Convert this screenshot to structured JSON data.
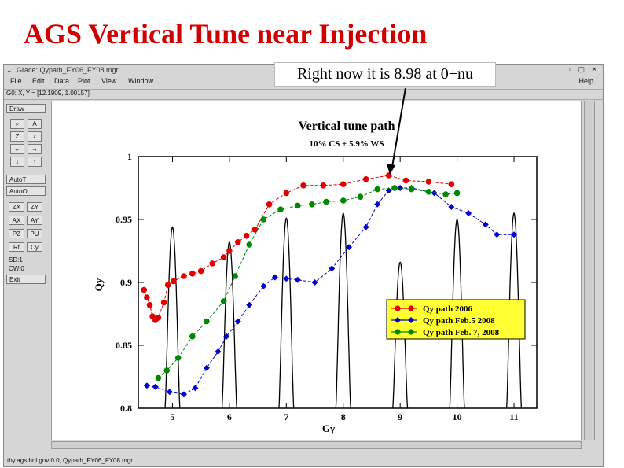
{
  "slide": {
    "title": "AGS Vertical Tune near Injection",
    "callout": "Right now it is 8.98 at 0+nu"
  },
  "window": {
    "title": "Grace: Qypath_FY06_FY08.mgr",
    "menu": [
      "File",
      "Edit",
      "Data",
      "Plot",
      "View",
      "Window"
    ],
    "help": "Help",
    "coords": "G0: X, Y = [12.1909, 1.00157]",
    "status": "tby.ags.bnl.gov:0.0, Qypath_FY06_FY08.mgr",
    "toolbar": {
      "draw": "Draw",
      "autot": "AutoT",
      "autoo": "AutoO",
      "zx": "ZX",
      "zy": "ZY",
      "ax": "AX",
      "ay": "AY",
      "pz": "PZ",
      "pu": "PU",
      "rt": "Rt",
      "cy": "Cy",
      "sd": "SD:1",
      "cw": "CW:0",
      "exit": "Exit"
    }
  },
  "chart_data": {
    "type": "line",
    "title": "Vertical tune path",
    "subtitle": "10% CS + 5.9% WS",
    "xlabel": "Gγ",
    "ylabel": "Qy",
    "xlim": [
      4.4,
      11.4
    ],
    "ylim": [
      0.8,
      1.0
    ],
    "xticks": [
      5,
      6,
      7,
      8,
      9,
      10,
      11
    ],
    "yticks": [
      0.8,
      0.85,
      0.9,
      0.95,
      1
    ],
    "ytick_labels": [
      "0.8",
      "0.85",
      "0.9",
      "0.95",
      "1"
    ],
    "legend_position": "right",
    "series": [
      {
        "name": "Qy path 2006",
        "color": "#e00000",
        "points": [
          [
            4.5,
            0.894
          ],
          [
            4.55,
            0.888
          ],
          [
            4.6,
            0.882
          ],
          [
            4.65,
            0.873
          ],
          [
            4.7,
            0.87
          ],
          [
            4.75,
            0.872
          ],
          [
            4.85,
            0.884
          ],
          [
            4.92,
            0.898
          ],
          [
            5.02,
            0.901
          ],
          [
            5.2,
            0.905
          ],
          [
            5.35,
            0.907
          ],
          [
            5.5,
            0.909
          ],
          [
            5.7,
            0.915
          ],
          [
            5.9,
            0.92
          ],
          [
            6.0,
            0.925
          ],
          [
            6.15,
            0.932
          ],
          [
            6.3,
            0.937
          ],
          [
            6.45,
            0.942
          ],
          [
            6.7,
            0.962
          ],
          [
            7.0,
            0.971
          ],
          [
            7.3,
            0.977
          ],
          [
            7.65,
            0.977
          ],
          [
            8.0,
            0.978
          ],
          [
            8.4,
            0.982
          ],
          [
            8.8,
            0.985
          ],
          [
            9.1,
            0.981
          ],
          [
            9.5,
            0.98
          ],
          [
            9.9,
            0.978
          ]
        ]
      },
      {
        "name": "Qy path Feb.5 2008",
        "color": "#0000d0",
        "points": [
          [
            4.55,
            0.818
          ],
          [
            4.7,
            0.817
          ],
          [
            4.95,
            0.813
          ],
          [
            5.2,
            0.811
          ],
          [
            5.4,
            0.816
          ],
          [
            5.6,
            0.832
          ],
          [
            5.8,
            0.845
          ],
          [
            5.95,
            0.857
          ],
          [
            6.15,
            0.869
          ],
          [
            6.35,
            0.882
          ],
          [
            6.6,
            0.897
          ],
          [
            6.8,
            0.904
          ],
          [
            7.0,
            0.903
          ],
          [
            7.2,
            0.902
          ],
          [
            7.5,
            0.9
          ],
          [
            7.8,
            0.911
          ],
          [
            8.1,
            0.928
          ],
          [
            8.4,
            0.944
          ],
          [
            8.6,
            0.962
          ],
          [
            8.8,
            0.973
          ],
          [
            9.0,
            0.975
          ],
          [
            9.2,
            0.975
          ],
          [
            9.6,
            0.971
          ],
          [
            9.9,
            0.96
          ],
          [
            10.2,
            0.955
          ],
          [
            10.5,
            0.946
          ],
          [
            10.7,
            0.938
          ],
          [
            11.0,
            0.938
          ]
        ]
      },
      {
        "name": "Qy path Feb. 7, 2008",
        "color": "#008800",
        "points": [
          [
            4.75,
            0.824
          ],
          [
            4.9,
            0.83
          ],
          [
            5.1,
            0.84
          ],
          [
            5.35,
            0.857
          ],
          [
            5.6,
            0.869
          ],
          [
            5.9,
            0.885
          ],
          [
            6.1,
            0.905
          ],
          [
            6.35,
            0.93
          ],
          [
            6.6,
            0.95
          ],
          [
            6.9,
            0.958
          ],
          [
            7.2,
            0.961
          ],
          [
            7.45,
            0.962
          ],
          [
            7.7,
            0.964
          ],
          [
            8.0,
            0.965
          ],
          [
            8.3,
            0.968
          ],
          [
            8.6,
            0.974
          ],
          [
            8.9,
            0.975
          ],
          [
            9.2,
            0.974
          ],
          [
            9.5,
            0.972
          ],
          [
            9.8,
            0.97
          ],
          [
            10.0,
            0.971
          ]
        ]
      }
    ],
    "resonance_peaks": [
      5.0,
      6.0,
      7.0,
      8.0,
      9.0,
      10.0,
      11.0
    ],
    "resonance_heights": [
      0.944,
      0.932,
      0.951,
      0.955,
      0.916,
      0.95,
      0.955
    ]
  }
}
